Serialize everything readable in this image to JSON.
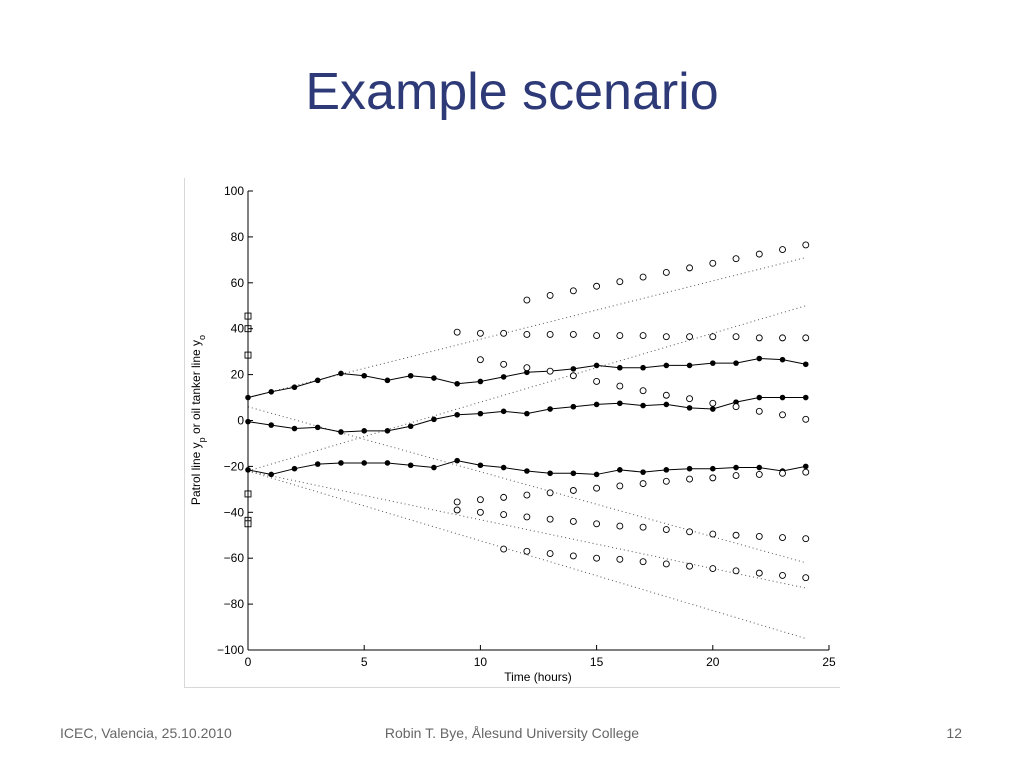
{
  "slide": {
    "title": "Example scenario",
    "footer_left": "ICEC, Valencia, 25.10.2010",
    "footer_center": "Robin T. Bye, Ålesund University College",
    "page_number": "12",
    "title_color": "#2E3A77"
  },
  "chart_data": {
    "type": "line",
    "xlabel": "Time (hours)",
    "ylabel": "Patrol line y_p or oil tanker line y_o",
    "xlim": [
      0,
      25
    ],
    "ylim": [
      -100,
      100
    ],
    "xticks": [
      0,
      5,
      10,
      15,
      20,
      25
    ],
    "yticks": [
      -100,
      -80,
      -60,
      -40,
      -20,
      0,
      20,
      40,
      60,
      80,
      100
    ],
    "grid": false,
    "legend": "none",
    "patrol_series": [
      {
        "marker": "filled-circle",
        "x": [
          0,
          1,
          2,
          3,
          4,
          5,
          6,
          7,
          8,
          9,
          10,
          11,
          12,
          13,
          14,
          15,
          16,
          17,
          18,
          19,
          20,
          21,
          22,
          23,
          24
        ],
        "y": [
          10,
          12.5,
          14.5,
          17.5,
          20.5,
          19.5,
          17.5,
          19.5,
          18.5,
          16,
          17,
          19,
          21,
          21.5,
          22.5,
          24,
          23,
          23,
          24,
          24,
          25,
          25,
          27,
          26.5,
          24.5
        ]
      },
      {
        "marker": "filled-circle",
        "x": [
          0,
          1,
          2,
          3,
          4,
          5,
          6,
          7,
          8,
          9,
          10,
          11,
          12,
          13,
          14,
          15,
          16,
          17,
          18,
          19,
          20,
          21,
          22,
          23,
          24
        ],
        "y": [
          -0.5,
          -2,
          -3.5,
          -3,
          -5,
          -4.5,
          -4.5,
          -2.5,
          0.5,
          2.5,
          3,
          4,
          3,
          5,
          6,
          7,
          7.5,
          6.5,
          7,
          5.5,
          5,
          8,
          10,
          10,
          10
        ]
      },
      {
        "marker": "filled-circle",
        "x": [
          0,
          1,
          2,
          3,
          4,
          5,
          6,
          7,
          8,
          9,
          10,
          11,
          12,
          13,
          14,
          15,
          16,
          17,
          18,
          19,
          20,
          21,
          22,
          23,
          24
        ],
        "y": [
          -21.5,
          -23.5,
          -21,
          -19,
          -18.5,
          -18.5,
          -18.5,
          -19.5,
          -20.5,
          -17.5,
          -19.5,
          -20.5,
          -22,
          -23,
          -23,
          -23.5,
          -21.5,
          -22.5,
          -21.5,
          -21,
          -21,
          -20.5,
          -20.5,
          -22,
          -20
        ]
      }
    ],
    "tanker_series": [
      {
        "marker": "open-circle",
        "x": [
          12,
          13,
          14,
          15,
          16,
          17,
          18,
          19,
          20,
          21,
          22,
          23,
          24
        ],
        "y": [
          52.5,
          54.5,
          56.5,
          58.5,
          60.5,
          62.5,
          64.5,
          66.5,
          68.5,
          70.5,
          72.5,
          74.5,
          76.5
        ]
      },
      {
        "marker": "open-circle",
        "x": [
          9,
          10,
          11,
          12,
          13,
          14,
          15,
          16,
          17,
          18,
          19,
          20,
          21,
          22,
          23,
          24
        ],
        "y": [
          38.5,
          38,
          38,
          37.5,
          37.5,
          37.5,
          37,
          37,
          37,
          36.5,
          36.5,
          36.5,
          36.5,
          36,
          36,
          36
        ]
      },
      {
        "marker": "open-circle",
        "x": [
          10,
          11,
          12,
          13,
          14,
          15,
          16,
          17,
          18,
          19,
          20,
          21,
          22,
          23,
          24
        ],
        "y": [
          26.5,
          24.5,
          23,
          21.5,
          19.5,
          17,
          15,
          13,
          11,
          9.5,
          7.5,
          6,
          4,
          2.5,
          0.5
        ]
      },
      {
        "marker": "open-circle",
        "x": [
          9,
          10,
          11,
          12,
          13,
          14,
          15,
          16,
          17,
          18,
          19,
          20,
          21,
          22,
          23,
          24
        ],
        "y": [
          -35.5,
          -34.5,
          -33.5,
          -32.5,
          -31.5,
          -30.5,
          -29.5,
          -28.5,
          -27.5,
          -26.5,
          -25.5,
          -25,
          -24,
          -23.5,
          -23,
          -22.5
        ]
      },
      {
        "marker": "open-circle",
        "x": [
          9,
          10,
          11,
          12,
          13,
          14,
          15,
          16,
          17,
          18,
          19,
          20,
          21,
          22,
          23,
          24
        ],
        "y": [
          -39,
          -40,
          -41,
          -42,
          -43,
          -44,
          -45,
          -46,
          -46.5,
          -47.5,
          -48.5,
          -49.5,
          -50,
          -50.5,
          -51,
          -51.5
        ]
      },
      {
        "marker": "open-circle",
        "x": [
          11,
          12,
          13,
          14,
          15,
          16,
          17,
          18,
          19,
          20,
          21,
          22,
          23,
          24
        ],
        "y": [
          -56,
          -57,
          -58,
          -59,
          -60,
          -60.5,
          -61.5,
          -62.5,
          -63.5,
          -64.5,
          -65.5,
          -66.5,
          -67.5,
          -68.5
        ]
      }
    ],
    "boundary_lines": [
      {
        "style": "dotted",
        "x": [
          0,
          24
        ],
        "y": [
          10,
          71
        ]
      },
      {
        "style": "dotted",
        "x": [
          0,
          24
        ],
        "y": [
          -22,
          50
        ]
      },
      {
        "style": "dotted",
        "x": [
          0,
          24
        ],
        "y": [
          6,
          -62
        ]
      },
      {
        "style": "dotted",
        "x": [
          0,
          24
        ],
        "y": [
          -22,
          -73
        ]
      },
      {
        "style": "dotted",
        "x": [
          0,
          24
        ],
        "y": [
          -22,
          -95
        ]
      }
    ],
    "initial_markers": {
      "marker": "open-square",
      "x": 0,
      "y": [
        45.5,
        40,
        28.5,
        -32,
        -43.5,
        -45
      ]
    }
  }
}
